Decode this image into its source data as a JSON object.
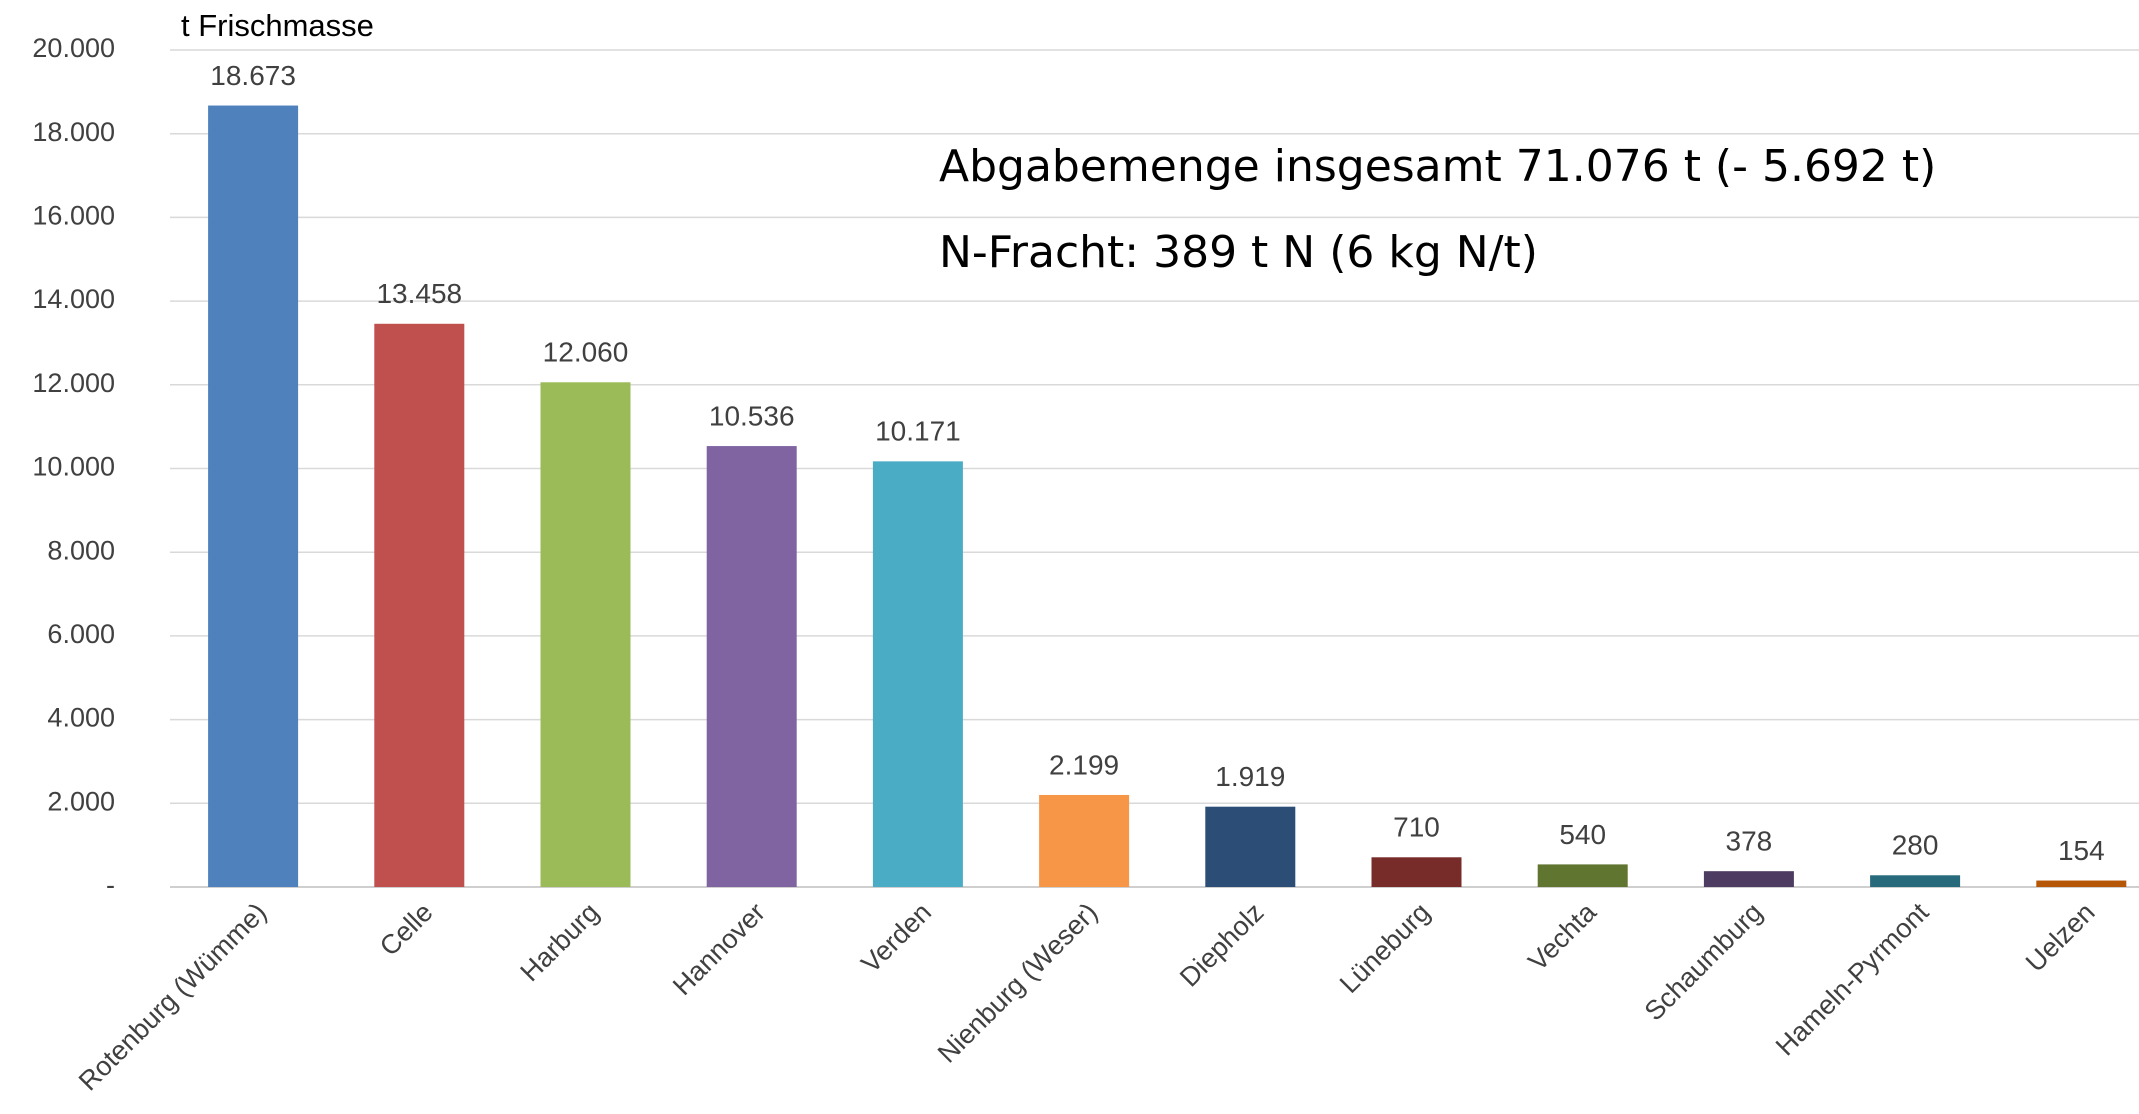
{
  "chart_data": {
    "type": "bar",
    "y_axis_label": "t Frischmasse",
    "annotations": [
      "Abgabemenge insgesamt  71.076 t (- 5.692 t)",
      "N-Fracht: 389 t N (6 kg N/t)"
    ],
    "categories": [
      "Rotenburg (Wümme)",
      "Celle",
      "Harburg",
      "Hannover",
      "Verden",
      "Nienburg (Weser)",
      "Diepholz",
      "Lüneburg",
      "Vechta",
      "Schaumburg",
      "Hameln-Pyrmont",
      "Uelzen"
    ],
    "values": [
      18673,
      13458,
      12060,
      10536,
      10171,
      2199,
      1919,
      710,
      540,
      378,
      280,
      154
    ],
    "value_labels": [
      "18.673",
      "13.458",
      "12.060",
      "10.536",
      "10.171",
      "2.199",
      "1.919",
      "710",
      "540",
      "378",
      "280",
      "154"
    ],
    "colors": [
      "#4f81bd",
      "#c0504d",
      "#9bbb59",
      "#8064a2",
      "#4bacc6",
      "#f79646",
      "#2c4d75",
      "#772c2a",
      "#5f7530",
      "#4d3b62",
      "#276a7c",
      "#b65708"
    ],
    "ylim": [
      0,
      20000
    ],
    "yticks": [
      {
        "value": 0,
        "label": "-"
      },
      {
        "value": 2000,
        "label": "2.000"
      },
      {
        "value": 4000,
        "label": "4.000"
      },
      {
        "value": 6000,
        "label": "6.000"
      },
      {
        "value": 8000,
        "label": "8.000"
      },
      {
        "value": 10000,
        "label": "10.000"
      },
      {
        "value": 12000,
        "label": "12.000"
      },
      {
        "value": 14000,
        "label": "14.000"
      },
      {
        "value": 16000,
        "label": "16.000"
      },
      {
        "value": 18000,
        "label": "18.000"
      },
      {
        "value": 20000,
        "label": "20.000"
      }
    ],
    "grid": true
  }
}
